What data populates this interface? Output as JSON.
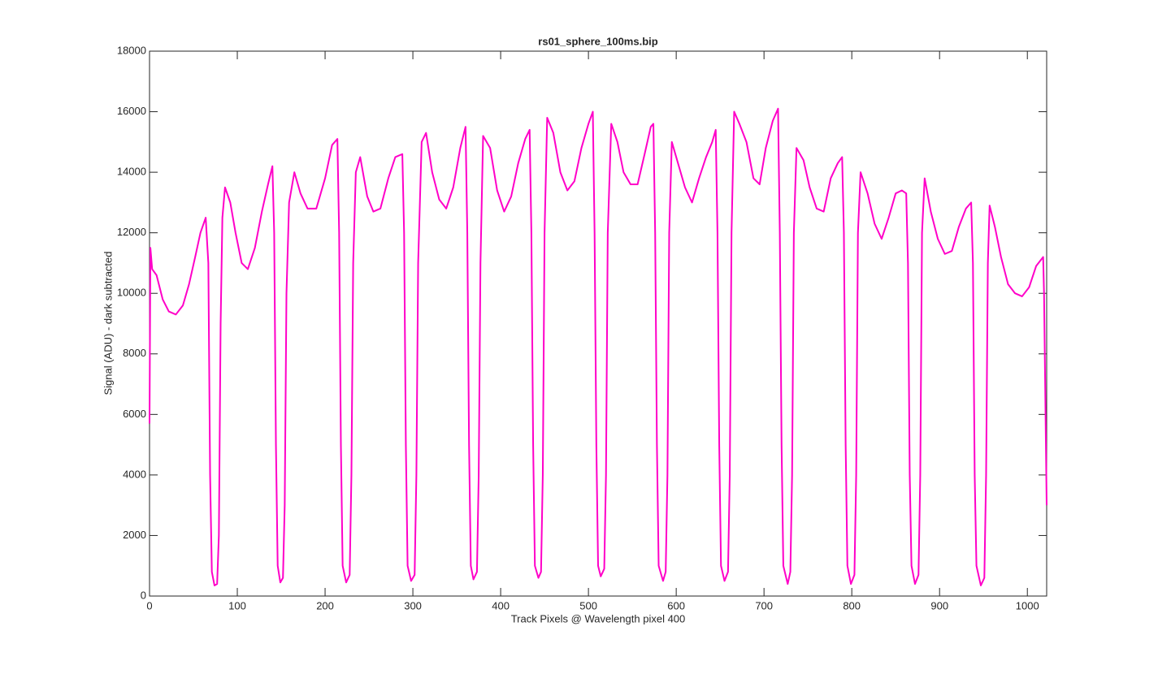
{
  "chart_data": {
    "type": "line",
    "title": "rs01_sphere_100ms.bip",
    "xlabel": "Track Pixels @ Wavelength pixel 400",
    "ylabel": "Signal (ADU) - dark subtracted",
    "xlim": [
      0,
      1022
    ],
    "ylim": [
      0,
      18000
    ],
    "xticks": [
      0,
      100,
      200,
      300,
      400,
      500,
      600,
      700,
      800,
      900,
      1000
    ],
    "yticks": [
      0,
      2000,
      4000,
      6000,
      8000,
      10000,
      12000,
      14000,
      16000,
      18000
    ],
    "x": [
      0,
      1,
      3,
      8,
      15,
      22,
      30,
      38,
      45,
      52,
      58,
      64,
      67,
      69,
      71,
      74,
      77,
      79,
      81,
      83,
      86,
      92,
      98,
      105,
      112,
      120,
      128,
      135,
      140,
      142,
      144,
      146,
      149,
      152,
      154,
      156,
      159,
      165,
      172,
      180,
      190,
      200,
      208,
      214,
      216,
      218,
      220,
      224,
      228,
      230,
      232,
      235,
      240,
      248,
      255,
      263,
      272,
      280,
      288,
      290,
      292,
      294,
      298,
      302,
      304,
      306,
      310,
      315,
      322,
      330,
      338,
      346,
      354,
      360,
      362,
      364,
      366,
      369,
      373,
      375,
      377,
      380,
      388,
      396,
      404,
      412,
      420,
      428,
      433,
      435,
      437,
      439,
      443,
      446,
      448,
      450,
      453,
      460,
      468,
      476,
      484,
      492,
      500,
      505,
      507,
      509,
      511,
      514,
      518,
      520,
      522,
      526,
      533,
      540,
      548,
      556,
      564,
      571,
      574,
      576,
      578,
      580,
      585,
      588,
      590,
      592,
      595,
      602,
      610,
      618,
      626,
      634,
      641,
      645,
      647,
      649,
      651,
      655,
      659,
      661,
      663,
      666,
      672,
      680,
      688,
      695,
      702,
      710,
      716,
      718,
      720,
      722,
      727,
      730,
      732,
      734,
      737,
      745,
      752,
      760,
      768,
      776,
      784,
      789,
      791,
      793,
      795,
      799,
      803,
      805,
      807,
      810,
      818,
      826,
      834,
      842,
      850,
      857,
      862,
      864,
      866,
      868,
      872,
      876,
      878,
      880,
      883,
      890,
      898,
      906,
      914,
      922,
      930,
      936,
      938,
      940,
      942,
      947,
      951,
      953,
      955,
      957,
      963,
      970,
      978,
      986,
      994,
      1002,
      1010,
      1018,
      1019,
      1022
    ],
    "series": [
      {
        "color": "#ff00c8",
        "values": [
          5700,
          11500,
          10800,
          10600,
          9800,
          9400,
          9300,
          9600,
          10300,
          11200,
          12000,
          12500,
          11000,
          4000,
          800,
          350,
          400,
          2000,
          9000,
          12500,
          13500,
          13000,
          12000,
          11000,
          10800,
          11500,
          12700,
          13600,
          14200,
          12000,
          5000,
          1000,
          450,
          600,
          3000,
          10000,
          13000,
          14000,
          13300,
          12800,
          12800,
          13800,
          14900,
          15100,
          12000,
          5000,
          1000,
          450,
          700,
          4000,
          11000,
          14000,
          14500,
          13200,
          12700,
          12800,
          13800,
          14500,
          14600,
          12000,
          5000,
          1000,
          500,
          700,
          4000,
          11000,
          15000,
          15300,
          14000,
          13100,
          12800,
          13500,
          14800,
          15500,
          12000,
          5000,
          1000,
          550,
          800,
          4000,
          11000,
          15200,
          14800,
          13400,
          12700,
          13200,
          14300,
          15100,
          15400,
          12000,
          5000,
          1000,
          600,
          800,
          4000,
          12000,
          15800,
          15300,
          14000,
          13400,
          13700,
          14800,
          15600,
          16000,
          12000,
          5000,
          1000,
          650,
          900,
          4000,
          12000,
          15600,
          15000,
          14000,
          13600,
          13600,
          14600,
          15500,
          15600,
          12000,
          5000,
          1000,
          500,
          800,
          4000,
          12000,
          15000,
          14300,
          13500,
          13000,
          13800,
          14500,
          15000,
          15400,
          12000,
          5000,
          1000,
          500,
          800,
          4000,
          12000,
          16000,
          15600,
          15000,
          13800,
          13600,
          14800,
          15700,
          16100,
          12000,
          5000,
          1000,
          400,
          800,
          4000,
          12000,
          14800,
          14400,
          13500,
          12800,
          12700,
          13800,
          14300,
          14500,
          12000,
          5000,
          1000,
          400,
          700,
          4000,
          12000,
          14000,
          13300,
          12300,
          11800,
          12500,
          13300,
          13400,
          13300,
          11000,
          4000,
          1000,
          400,
          700,
          4000,
          12000,
          13800,
          12700,
          11800,
          11300,
          11400,
          12200,
          12800,
          13000,
          11000,
          4000,
          1000,
          350,
          600,
          4000,
          11000,
          12900,
          12200,
          11200,
          10300,
          10000,
          9900,
          10200,
          10900,
          11200,
          10000,
          3000
        ]
      }
    ]
  }
}
